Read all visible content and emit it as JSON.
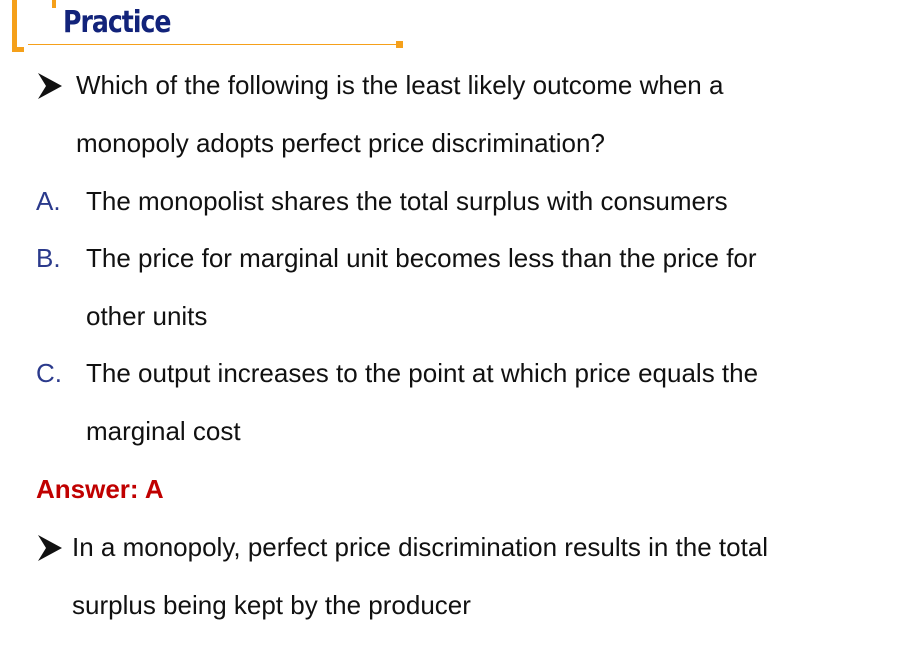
{
  "header": {
    "title": "Practice"
  },
  "question": {
    "bullet_icon": "arrow-bullet-icon",
    "lines": [
      "Which of the following is the least likely outcome when a",
      "monopoly adopts perfect price discrimination?"
    ]
  },
  "options": [
    {
      "letter": "A.",
      "lines": [
        "The monopolist shares the total surplus with consumers"
      ]
    },
    {
      "letter": "B.",
      "lines": [
        "The price for marginal unit becomes less than the price for",
        "other units"
      ]
    },
    {
      "letter": "C.",
      "lines": [
        "The output increases to the point at which price equals the",
        "marginal cost"
      ]
    }
  ],
  "answer": {
    "text": "Answer: A"
  },
  "explanation": {
    "bullet_icon": "arrow-bullet-icon",
    "lines": [
      "In a monopoly, perfect price discrimination results in the total",
      "surplus being kept by the producer"
    ]
  },
  "colors": {
    "accent_orange": "#F5A01A",
    "title_navy": "#12237A",
    "option_letter_blue": "#2B3A8C",
    "answer_red": "#C00000"
  }
}
